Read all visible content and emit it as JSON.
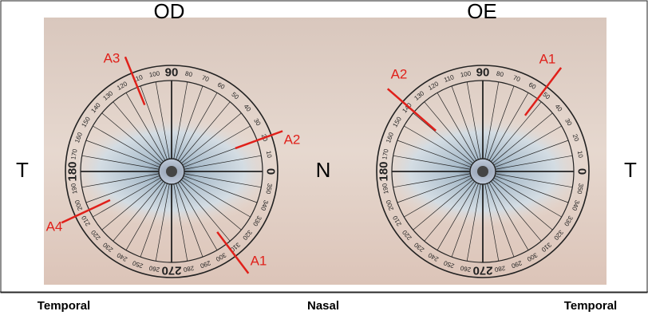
{
  "header": {
    "left_eye": "OD",
    "right_eye": "OE"
  },
  "side_labels": {
    "left": "T",
    "center": "N",
    "right": "T"
  },
  "footer": {
    "left": "Temporal",
    "center": "Nasal",
    "right": "Temporal"
  },
  "dial_labels": [
    "0",
    "10",
    "20",
    "30",
    "40",
    "50",
    "60",
    "70",
    "80",
    "90",
    "100",
    "110",
    "120",
    "130",
    "140",
    "150",
    "160",
    "170",
    "180",
    "190",
    "200",
    "210",
    "220",
    "230",
    "240",
    "250",
    "260",
    "270",
    "280",
    "290",
    "300",
    "310",
    "320",
    "330",
    "340",
    "350"
  ],
  "annotations": {
    "left_eye": [
      "A3",
      "A2",
      "A4",
      "A1"
    ],
    "right_eye": [
      "A2",
      "A1"
    ]
  }
}
